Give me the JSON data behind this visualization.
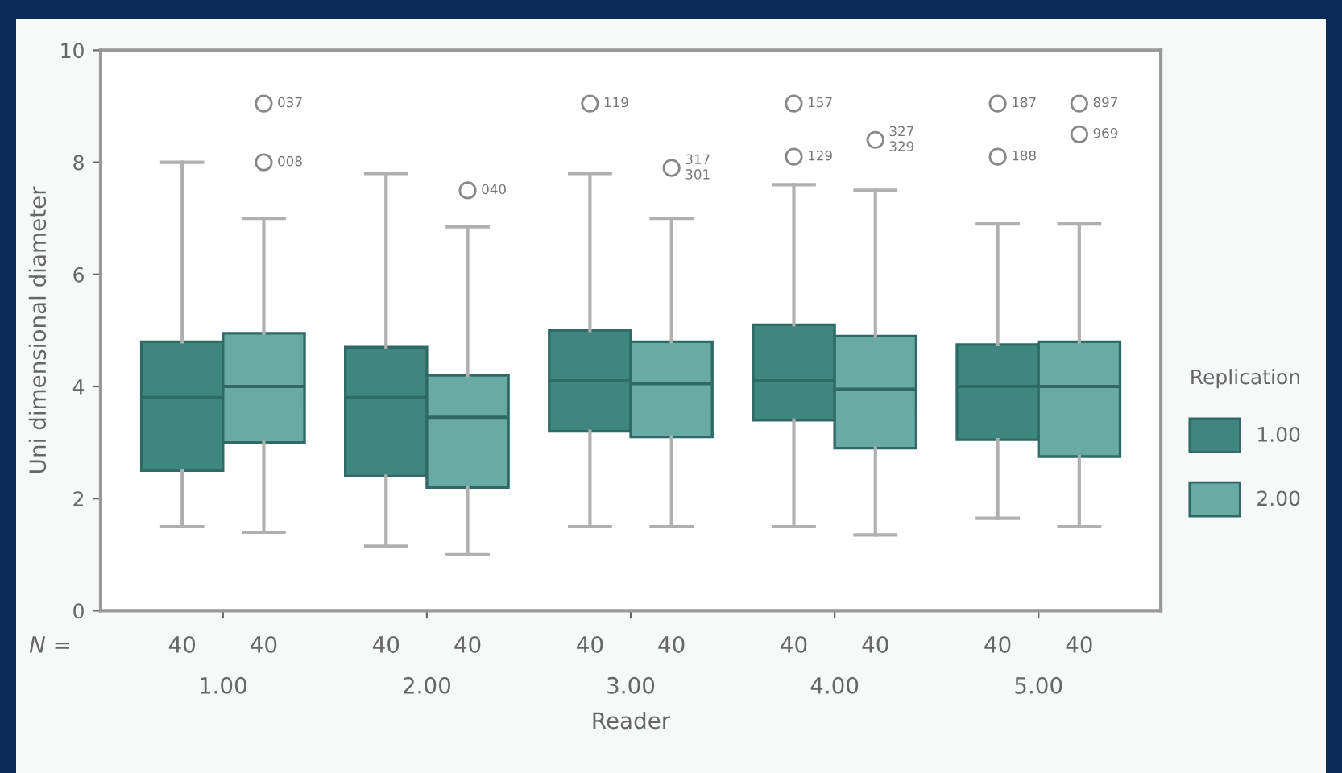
{
  "chart_data": {
    "type": "box",
    "xlabel": "Reader",
    "ylabel": "Uni dimensional diameter",
    "legend_title": "Replication",
    "legend": "right",
    "categories": [
      "1.00",
      "2.00",
      "3.00",
      "4.00",
      "5.00"
    ],
    "ylim": [
      0,
      10
    ],
    "yticks": [
      0,
      2,
      4,
      6,
      8,
      10
    ],
    "grid": false,
    "series": [
      {
        "name": "1.00",
        "color": "#3f8580",
        "boxes": [
          {
            "low": 1.5,
            "q1": 2.5,
            "median": 3.8,
            "q3": 4.8,
            "high": 8.0
          },
          {
            "low": 1.15,
            "q1": 2.4,
            "median": 3.8,
            "q3": 4.7,
            "high": 7.8
          },
          {
            "low": 1.5,
            "q1": 3.2,
            "median": 4.1,
            "q3": 5.0,
            "high": 7.8,
            "outliers": [
              9.05
            ]
          },
          {
            "low": 1.5,
            "q1": 3.4,
            "median": 4.1,
            "q3": 5.1,
            "high": 7.6,
            "outliers": [
              9.05,
              8.1
            ]
          },
          {
            "low": 1.65,
            "q1": 3.05,
            "median": 4.0,
            "q3": 4.75,
            "high": 6.9,
            "outliers": [
              9.05,
              8.1
            ]
          }
        ]
      },
      {
        "name": "2.00",
        "color": "#69aaa5",
        "boxes": [
          {
            "low": 1.4,
            "q1": 3.0,
            "median": 4.0,
            "q3": 4.95,
            "high": 7.0,
            "outliers": [
              9.05,
              8.0
            ]
          },
          {
            "low": 1.0,
            "q1": 2.2,
            "median": 3.45,
            "q3": 4.2,
            "high": 6.85,
            "outliers": [
              7.5
            ]
          },
          {
            "low": 1.5,
            "q1": 3.1,
            "median": 4.05,
            "q3": 4.8,
            "high": 7.0,
            "outliers": [
              7.9
            ]
          },
          {
            "low": 1.35,
            "q1": 2.9,
            "median": 3.95,
            "q3": 4.9,
            "high": 7.5,
            "outliers": [
              8.4
            ]
          },
          {
            "low": 1.5,
            "q1": 2.75,
            "median": 4.0,
            "q3": 4.8,
            "high": 6.9,
            "outliers": [
              9.05,
              8.5
            ]
          }
        ]
      }
    ],
    "annotations": [
      "N =",
      "40",
      "40",
      "40",
      "40",
      "40",
      "40",
      "40",
      "40",
      "40",
      "40",
      "037",
      "008",
      "040",
      "119",
      "317\n301",
      "157",
      "129",
      "327\n329",
      "187",
      "188",
      "897",
      "969"
    ]
  }
}
